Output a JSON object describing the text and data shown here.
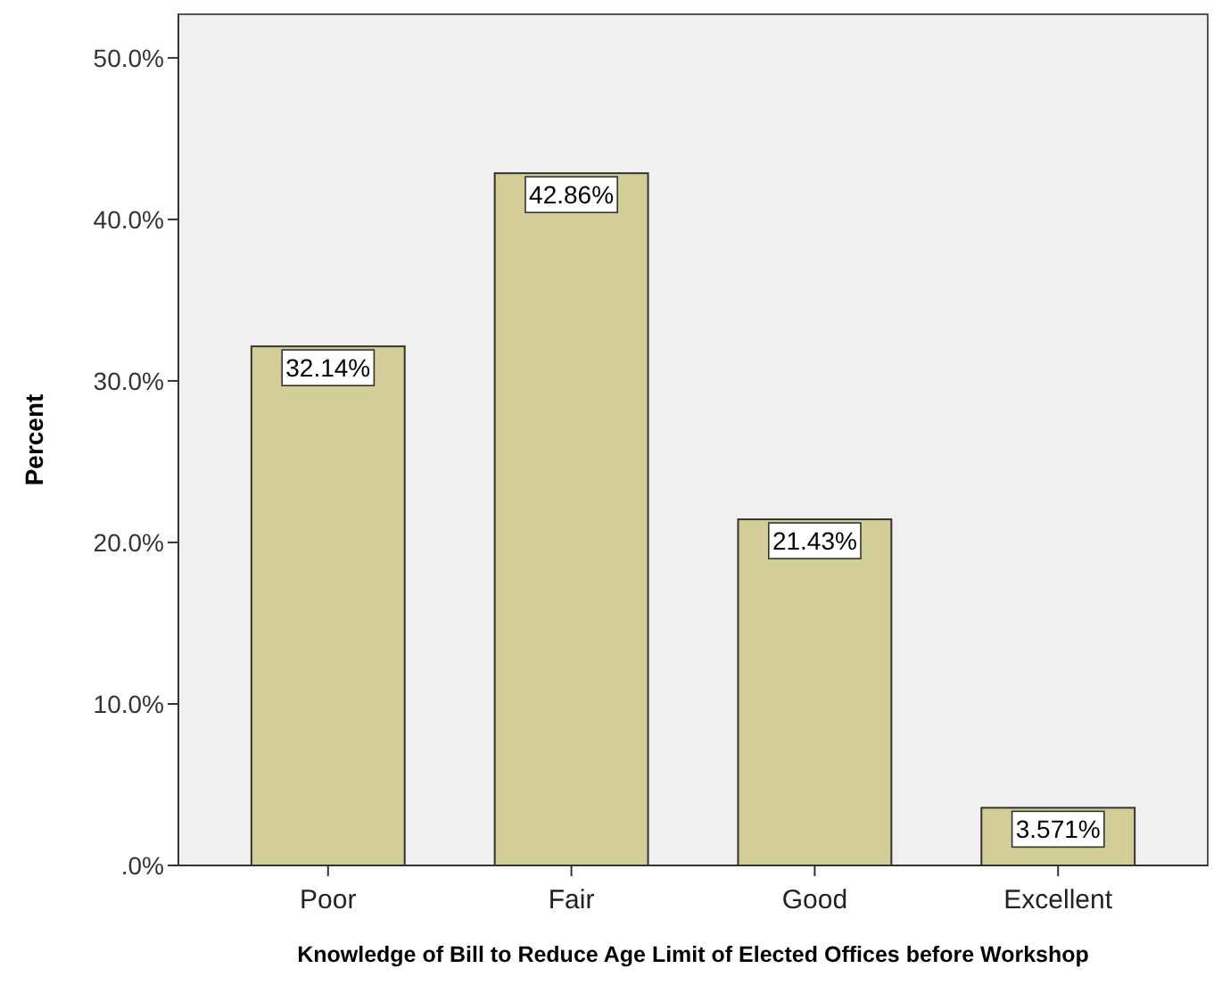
{
  "chart_data": {
    "type": "bar",
    "xlabel": "Knowledge of Bill to Reduce Age Limit of Elected Offices before Workshop",
    "ylabel": "Percent",
    "categories": [
      "Poor",
      "Fair",
      "Good",
      "Excellent"
    ],
    "values": [
      32.14,
      42.86,
      21.43,
      3.571
    ],
    "value_labels": [
      "32.14%",
      "42.86%",
      "21.43%",
      "3.571%"
    ],
    "color": "#d3ce97",
    "ylim": [
      0,
      52.7
    ],
    "yticks": [
      {
        "value": 0,
        "label": ".0%"
      },
      {
        "value": 10,
        "label": "10.0%"
      },
      {
        "value": 20,
        "label": "20.0%"
      },
      {
        "value": 30,
        "label": "30.0%"
      },
      {
        "value": 40,
        "label": "40.0%"
      },
      {
        "value": 50,
        "label": "50.0%"
      }
    ],
    "grid": false
  }
}
